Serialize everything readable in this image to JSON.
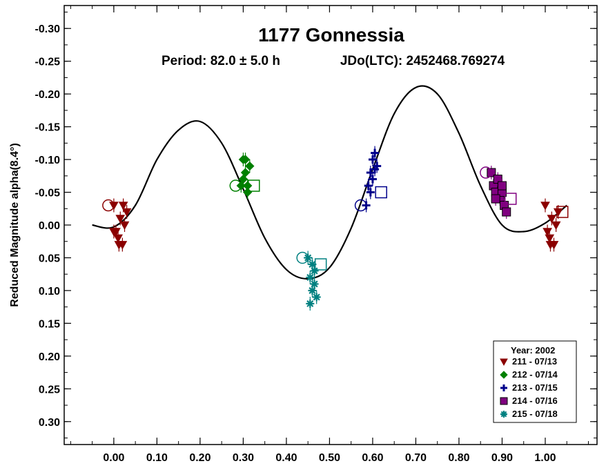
{
  "chart_data": {
    "type": "scatter",
    "title": "1177 Gonnessia",
    "subtitle_period": "Period: 82.0 ± 5.0 h",
    "subtitle_epoch": "JDo(LTC): 2452468.769274",
    "xlabel": "",
    "ylabel": "Reduced Magnitude alpha(8.4°)",
    "xlim": [
      -0.115,
      1.12
    ],
    "ylim": [
      -0.335,
      0.335
    ],
    "y_inverted": true,
    "x_ticks": [
      "0.00",
      "0.10",
      "0.20",
      "0.30",
      "0.40",
      "0.50",
      "0.60",
      "0.70",
      "0.80",
      "0.90",
      "1.00"
    ],
    "y_ticks": [
      "-0.30",
      "-0.25",
      "-0.20",
      "-0.15",
      "-0.10",
      "-0.05",
      "0.00",
      "0.05",
      "0.10",
      "0.15",
      "0.20",
      "0.25",
      "0.30"
    ],
    "grid": false,
    "legend_position": "bottom-right",
    "legend_title": "Year: 2002",
    "fit_curve": {
      "x": [
        -0.05,
        0.0,
        0.05,
        0.1,
        0.15,
        0.2,
        0.25,
        0.3,
        0.35,
        0.4,
        0.45,
        0.5,
        0.55,
        0.6,
        0.65,
        0.7,
        0.75,
        0.8,
        0.85,
        0.9,
        0.95,
        1.0,
        1.05
      ],
      "y": [
        0.0,
        0.003,
        -0.03,
        -0.1,
        -0.145,
        -0.158,
        -0.125,
        -0.055,
        0.02,
        0.068,
        0.082,
        0.065,
        0.005,
        -0.085,
        -0.17,
        -0.21,
        -0.2,
        -0.14,
        -0.06,
        0.0,
        0.01,
        -0.003,
        -0.03
      ]
    },
    "series": [
      {
        "name": "211 - 07/13",
        "marker": "triangle-down",
        "color": "#8B0000",
        "x": [
          0.0,
          0.005,
          0.01,
          0.015,
          0.02,
          0.025,
          0.03,
          0.0,
          0.012,
          0.022,
          1.0,
          1.005,
          1.01,
          1.015,
          1.02,
          1.025,
          1.03,
          1.012
        ],
        "y": [
          -0.03,
          0.01,
          0.02,
          -0.01,
          0.03,
          0.0,
          -0.02,
          0.01,
          0.03,
          -0.03,
          -0.03,
          0.01,
          0.02,
          -0.01,
          0.03,
          0.0,
          -0.02,
          0.03
        ]
      },
      {
        "name": "212 - 07/14",
        "marker": "diamond",
        "color": "#008000",
        "x": [
          0.295,
          0.3,
          0.305,
          0.31,
          0.315,
          0.3,
          0.31,
          0.305
        ],
        "y": [
          -0.06,
          -0.1,
          -0.08,
          -0.05,
          -0.09,
          -0.07,
          -0.06,
          -0.1
        ]
      },
      {
        "name": "213 - 07/15",
        "marker": "plus",
        "color": "#00008B",
        "x": [
          0.585,
          0.59,
          0.595,
          0.6,
          0.605,
          0.61,
          0.6,
          0.595,
          0.605
        ],
        "y": [
          -0.03,
          -0.06,
          -0.08,
          -0.1,
          -0.11,
          -0.09,
          -0.07,
          -0.05,
          -0.085
        ]
      },
      {
        "name": "214 - 07/16",
        "marker": "square",
        "color": "#800080",
        "x": [
          0.875,
          0.88,
          0.885,
          0.89,
          0.895,
          0.9,
          0.905,
          0.91,
          0.885,
          0.9
        ],
        "y": [
          -0.08,
          -0.06,
          -0.05,
          -0.07,
          -0.04,
          -0.05,
          -0.03,
          -0.02,
          -0.04,
          -0.06
        ]
      },
      {
        "name": "215 - 07/18",
        "marker": "asterisk",
        "color": "#008080",
        "x": [
          0.45,
          0.455,
          0.46,
          0.465,
          0.47,
          0.455,
          0.46,
          0.465
        ],
        "y": [
          0.05,
          0.08,
          0.1,
          0.07,
          0.11,
          0.12,
          0.06,
          0.09
        ]
      }
    ]
  }
}
